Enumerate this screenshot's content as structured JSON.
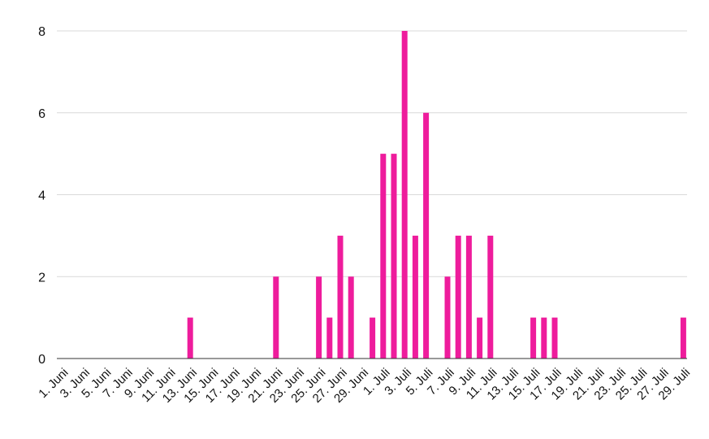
{
  "chart_data": {
    "type": "bar",
    "title": "",
    "xlabel": "",
    "ylabel": "",
    "ylim": [
      0,
      8
    ],
    "yticks": [
      0,
      2,
      4,
      6,
      8
    ],
    "grid": true,
    "legend": "none",
    "bar_color": "#ee1c9c",
    "categories": [
      "1. Juni",
      "2. Juni",
      "3. Juni",
      "4. Juni",
      "5. Juni",
      "6. Juni",
      "7. Juni",
      "8. Juni",
      "9. Juni",
      "10. Juni",
      "11. Juni",
      "12. Juni",
      "13. Juni",
      "14. Juni",
      "15. Juni",
      "16. Juni",
      "17. Juni",
      "18. Juni",
      "19. Juni",
      "20. Juni",
      "21. Juni",
      "22. Juni",
      "23. Juni",
      "24. Juni",
      "25. Juni",
      "26. Juni",
      "27. Juni",
      "28. Juni",
      "29. Juni",
      "30. Juni",
      "1. Juli",
      "2. Juli",
      "3. Juli",
      "4. Juli",
      "5. Juli",
      "6. Juli",
      "7. Juli",
      "8. Juli",
      "9. Juli",
      "10. Juli",
      "11. Juli",
      "12. Juli",
      "13. Juli",
      "14. Juli",
      "15. Juli",
      "16. Juli",
      "17. Juli",
      "18. Juli",
      "19. Juli",
      "20. Juli",
      "21. Juli",
      "22. Juli",
      "23. Juli",
      "24. Juli",
      "25. Juli",
      "26. Juli",
      "27. Juli",
      "28. Juli",
      "29. Juli"
    ],
    "values": [
      0,
      0,
      0,
      0,
      0,
      0,
      0,
      0,
      0,
      0,
      0,
      0,
      1,
      0,
      0,
      0,
      0,
      0,
      0,
      0,
      2,
      0,
      0,
      0,
      2,
      1,
      3,
      2,
      0,
      1,
      5,
      5,
      8,
      3,
      6,
      0,
      2,
      3,
      3,
      1,
      3,
      0,
      0,
      0,
      1,
      1,
      1,
      0,
      0,
      0,
      0,
      0,
      0,
      0,
      0,
      0,
      0,
      0,
      1
    ],
    "tick_labels": [
      "1. Juni",
      "3. Juni",
      "5. Juni",
      "7. Juni",
      "9. Juni",
      "11. Juni",
      "13. Juni",
      "15. Juni",
      "17. Juni",
      "19. Juni",
      "21. Juni",
      "23. Juni",
      "25. Juni",
      "27. Juni",
      "29. Juni",
      "1. Juli",
      "3. Juli",
      "5. Juli",
      "7. Juli",
      "9. Juli",
      "11. Juli",
      "13. Juli",
      "15. Juli",
      "17. Juli",
      "19. Juli",
      "21. Juli",
      "23. Juli",
      "25. Juli",
      "27. Juli",
      "29. Juli"
    ]
  }
}
